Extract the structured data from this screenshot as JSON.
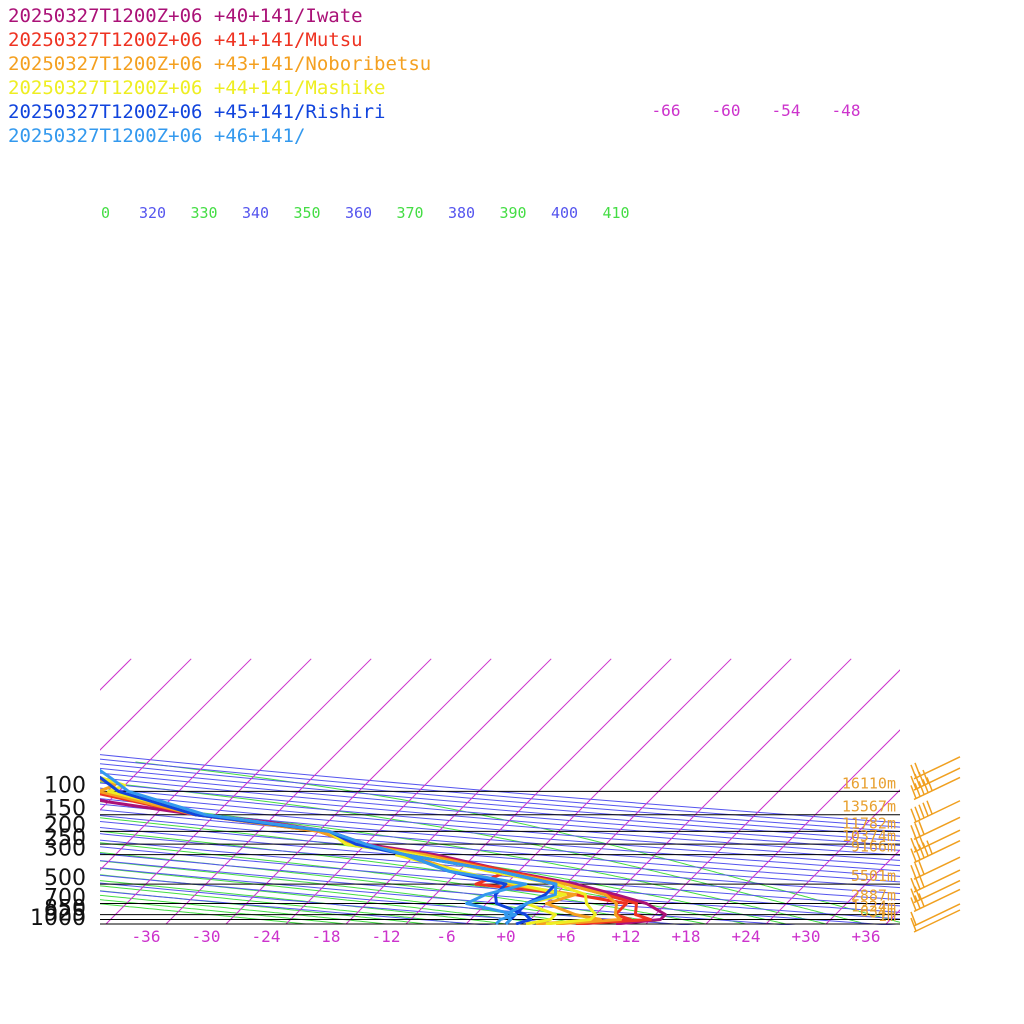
{
  "chart_data": {
    "type": "line",
    "title": "",
    "pressure_levels": [
      {
        "p": 100,
        "label": "100",
        "height": "16110m"
      },
      {
        "p": 150,
        "label": "150",
        "height": "13567m"
      },
      {
        "p": 200,
        "label": "200",
        "height": "11782m"
      },
      {
        "p": 250,
        "label": "250",
        "height": "10374m"
      },
      {
        "p": 300,
        "label": "300",
        "height": "9166m"
      },
      {
        "p": 500,
        "label": "500",
        "height": "5501m"
      },
      {
        "p": 700,
        "label": "700",
        "height": "2887m"
      },
      {
        "p": 850,
        "label": "850",
        "height": "1324m"
      },
      {
        "p": 925,
        "label": "925",
        "height": "634m"
      },
      {
        "p": 1000,
        "label": "1000",
        "height": "-1m"
      }
    ],
    "temp_ticks": [
      -36,
      -30,
      -24,
      -18,
      -12,
      -6,
      0,
      6,
      12,
      18,
      24,
      30,
      36
    ],
    "temp_tick_labels": [
      "-36",
      "-30",
      "-24",
      "-18",
      "-12",
      "-6",
      "+0",
      "+6",
      "+12",
      "+18",
      "+24",
      "+30",
      "+36"
    ],
    "upper_temp_labels": [
      "-66",
      "-60",
      "-54",
      "-48"
    ],
    "theta_labels": [
      "0",
      "320",
      "330",
      "340",
      "350",
      "360",
      "370",
      "380",
      "390",
      "400",
      "410"
    ],
    "colors": {
      "isotherm": "#cc33cc",
      "theta": "#5555ee",
      "theta_e": "#44dd44",
      "height_label": "#e8a030",
      "wind": "#f0a020",
      "axis": "#000000"
    },
    "series": [
      {
        "name": "20250327T1200Z+06 +40+141/Iwate",
        "color": "#aa1177",
        "temperature": [
          [
            1000,
            11
          ],
          [
            925,
            15
          ],
          [
            850,
            15
          ],
          [
            700,
            12
          ],
          [
            600,
            8
          ],
          [
            500,
            3
          ],
          [
            400,
            -5
          ],
          [
            300,
            -14
          ],
          [
            250,
            -22
          ],
          [
            200,
            -27
          ],
          [
            170,
            -34
          ],
          [
            150,
            -42
          ],
          [
            120,
            -52
          ],
          [
            100,
            -58
          ],
          [
            90,
            -58
          ],
          [
            70,
            -62
          ],
          [
            60,
            -65
          ],
          [
            50,
            -67
          ]
        ]
      },
      {
        "name": "20250327T1200Z+06 +41+141/Mutsu",
        "color": "#ee3322",
        "temperature": [
          [
            1000,
            7
          ],
          [
            925,
            14
          ],
          [
            850,
            12
          ],
          [
            700,
            11
          ],
          [
            600,
            7
          ],
          [
            500,
            2
          ],
          [
            400,
            -5
          ],
          [
            300,
            -15
          ],
          [
            250,
            -23
          ],
          [
            200,
            -28
          ],
          [
            150,
            -42
          ],
          [
            100,
            -55
          ],
          [
            90,
            -55
          ],
          [
            60,
            -61
          ],
          [
            50,
            -63
          ]
        ],
        "dewpoint": [
          [
            1000,
            7
          ],
          [
            925,
            12
          ],
          [
            850,
            10
          ],
          [
            700,
            10
          ],
          [
            600,
            4
          ],
          [
            500,
            -7
          ],
          [
            400,
            -5
          ]
        ]
      },
      {
        "name": "20250327T1200Z+06 +43+141/Noboribetsu",
        "color": "#f4a020",
        "temperature": [
          [
            1000,
            5
          ],
          [
            925,
            11
          ],
          [
            850,
            10
          ],
          [
            700,
            9
          ],
          [
            600,
            7
          ],
          [
            500,
            2
          ],
          [
            400,
            -6
          ],
          [
            300,
            -15
          ],
          [
            250,
            -23
          ],
          [
            200,
            -28
          ],
          [
            150,
            -42
          ],
          [
            100,
            -54
          ],
          [
            90,
            -53
          ],
          [
            70,
            -58
          ],
          [
            60,
            -60
          ],
          [
            50,
            -62
          ]
        ],
        "dewpoint": [
          [
            1000,
            3
          ],
          [
            925,
            9
          ],
          [
            850,
            6
          ],
          [
            700,
            2
          ],
          [
            600,
            4
          ],
          [
            500,
            -4
          ],
          [
            400,
            -10
          ],
          [
            300,
            -17
          ]
        ]
      },
      {
        "name": "20250327T1200Z+06 +44+141/Mashike",
        "color": "#eeee22",
        "temperature": [
          [
            1000,
            4
          ],
          [
            925,
            8
          ],
          [
            850,
            8
          ],
          [
            700,
            6
          ],
          [
            600,
            5
          ],
          [
            500,
            1
          ],
          [
            400,
            -7
          ],
          [
            300,
            -16
          ],
          [
            250,
            -24
          ],
          [
            200,
            -27
          ],
          [
            150,
            -41
          ],
          [
            100,
            -53
          ],
          [
            90,
            -52
          ],
          [
            70,
            -58
          ],
          [
            60,
            -59
          ],
          [
            50,
            -61
          ]
        ],
        "dewpoint": [
          [
            1000,
            2
          ],
          [
            925,
            4
          ],
          [
            850,
            4
          ],
          [
            700,
            0
          ],
          [
            600,
            3
          ],
          [
            500,
            -3
          ],
          [
            400,
            -10
          ],
          [
            300,
            -18
          ]
        ]
      },
      {
        "name": "20250327T1200Z+06 +45+141/Rishiri",
        "color": "#1144dd",
        "temperature": [
          [
            1000,
            0
          ],
          [
            925,
            0
          ],
          [
            850,
            0
          ],
          [
            700,
            0
          ],
          [
            600,
            1
          ],
          [
            500,
            1
          ],
          [
            400,
            -6
          ],
          [
            300,
            -17
          ],
          [
            250,
            -23
          ],
          [
            200,
            -27
          ],
          [
            150,
            -42
          ],
          [
            100,
            -52
          ],
          [
            80,
            -55
          ],
          [
            60,
            -59
          ],
          [
            50,
            -60
          ]
        ],
        "dewpoint": [
          [
            1000,
            1
          ],
          [
            925,
            2
          ],
          [
            850,
            1
          ],
          [
            700,
            -3
          ],
          [
            600,
            -4
          ],
          [
            500,
            -4
          ],
          [
            400,
            -11
          ],
          [
            300,
            -17
          ]
        ]
      },
      {
        "name": "20250327T1200Z+06 +46+141/",
        "color": "#3399ee",
        "temperature": [
          [
            1000,
            0
          ],
          [
            925,
            0
          ],
          [
            850,
            -1
          ],
          [
            700,
            0
          ],
          [
            600,
            2
          ],
          [
            500,
            1
          ],
          [
            400,
            -6
          ],
          [
            300,
            -17
          ],
          [
            250,
            -22
          ],
          [
            200,
            -27
          ],
          [
            150,
            -41
          ],
          [
            100,
            -51
          ],
          [
            80,
            -54
          ],
          [
            60,
            -58
          ],
          [
            50,
            -59
          ]
        ],
        "dewpoint": [
          [
            1000,
            -1
          ],
          [
            925,
            -1
          ],
          [
            850,
            0
          ],
          [
            700,
            -6
          ],
          [
            600,
            -5
          ],
          [
            500,
            -2
          ],
          [
            400,
            -11
          ],
          [
            300,
            -17
          ]
        ]
      }
    ],
    "wind_barbs": [
      {
        "p": 70,
        "barbs": 2
      },
      {
        "p": 85,
        "barbs": 4
      },
      {
        "p": 100,
        "barbs": 5
      },
      {
        "p": 150,
        "barbs": 5
      },
      {
        "p": 200,
        "barbs": 3
      },
      {
        "p": 250,
        "barbs": 3
      },
      {
        "p": 300,
        "barbs": 5
      },
      {
        "p": 400,
        "barbs": 3
      },
      {
        "p": 500,
        "barbs": 3
      },
      {
        "p": 600,
        "barbs": 2
      },
      {
        "p": 700,
        "barbs": 3
      },
      {
        "p": 900,
        "barbs": 1
      },
      {
        "p": 1000,
        "barbs": 1
      }
    ]
  }
}
